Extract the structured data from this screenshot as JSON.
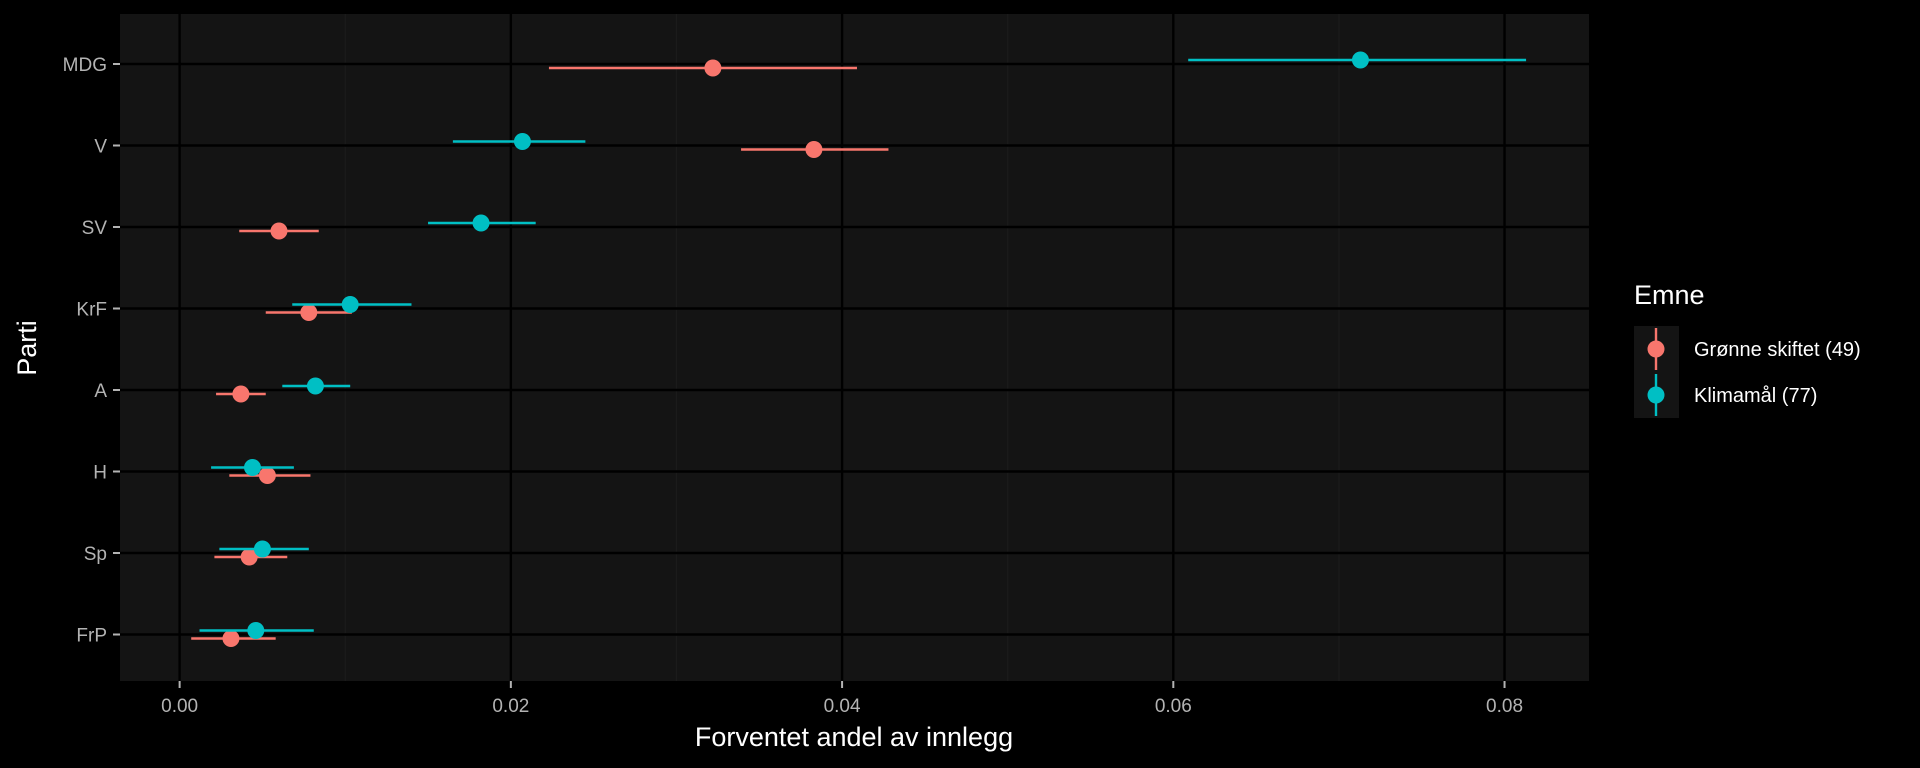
{
  "chart_data": {
    "type": "scatter",
    "subtype": "pointrange",
    "xlabel": "Forventet andel av innlegg",
    "ylabel": "Parti",
    "xlim": [
      -0.0036,
      0.0851
    ],
    "x_ticks": [
      0.0,
      0.02,
      0.04,
      0.06,
      0.08
    ],
    "x_tick_labels": [
      "0.00",
      "0.02",
      "0.04",
      "0.06",
      "0.08"
    ],
    "categories": [
      "MDG",
      "V",
      "SV",
      "KrF",
      "A",
      "H",
      "Sp",
      "FrP"
    ],
    "grid": true,
    "legend": {
      "title": "Emne",
      "position": "right"
    },
    "series": [
      {
        "name": "Grønne skiftet (49)",
        "color": "#F8766D",
        "estimate": [
          0.0322,
          0.0383,
          0.006,
          0.0078,
          0.0037,
          0.0053,
          0.0042,
          0.0031
        ],
        "lower": [
          0.0223,
          0.0339,
          0.0036,
          0.0052,
          0.0022,
          0.003,
          0.0021,
          0.0007
        ],
        "upper": [
          0.0409,
          0.0428,
          0.0084,
          0.0104,
          0.0052,
          0.0079,
          0.0065,
          0.0058
        ]
      },
      {
        "name": "Klimamål (77)",
        "color": "#00BFC4",
        "estimate": [
          0.0713,
          0.0207,
          0.0182,
          0.0103,
          0.0082,
          0.0044,
          0.005,
          0.0046
        ],
        "lower": [
          0.0609,
          0.0165,
          0.015,
          0.0068,
          0.0062,
          0.0019,
          0.0024,
          0.0012
        ],
        "upper": [
          0.0813,
          0.0245,
          0.0215,
          0.014,
          0.0103,
          0.0069,
          0.0078,
          0.0081
        ]
      }
    ]
  },
  "theme": {
    "background": "#000000",
    "panel": "#141414",
    "grid_major": "#000000",
    "grid_minor": "#1B1B1B",
    "tick_color": "#B3B3B3",
    "legend_key_bg": "#141414"
  }
}
